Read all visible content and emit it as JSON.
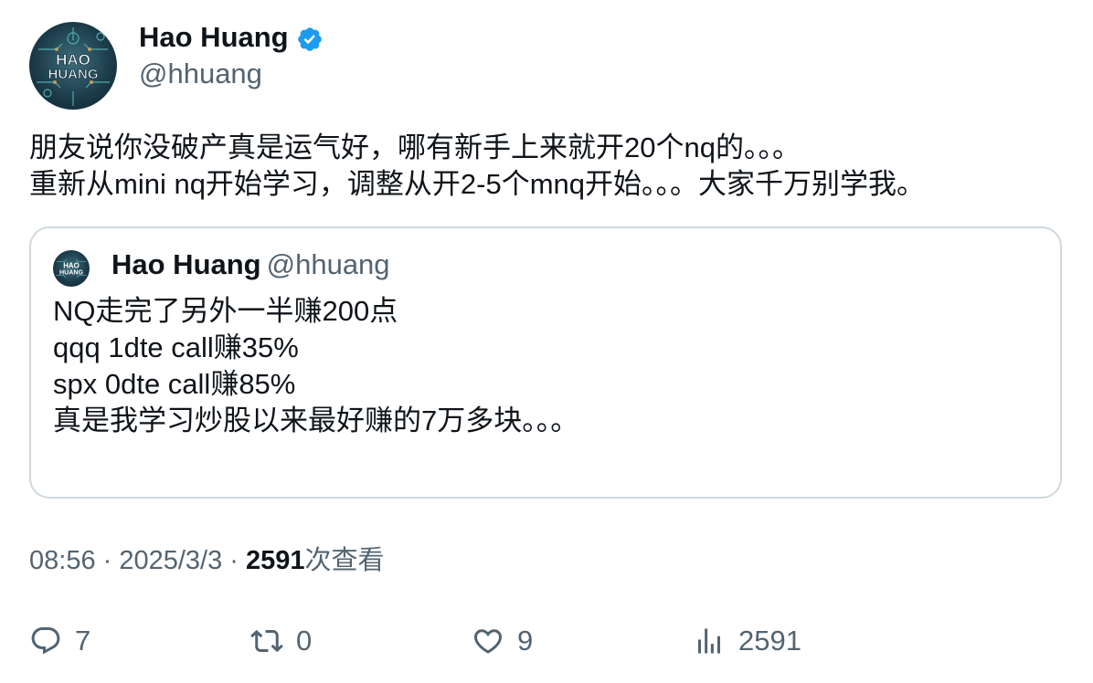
{
  "author": {
    "display_name": "Hao Huang",
    "handle": "@hhuang",
    "verified": true,
    "avatar_text": [
      "HAO",
      "HUANG"
    ],
    "verified_color": "#1d9bf0"
  },
  "tweet": {
    "text": "朋友说你没破产真是运气好，哪有新手上来就开20个nq的。。。\n重新从mini nq开始学习，调整从开2-5个mnq开始。。。大家千万别学我。"
  },
  "quote": {
    "display_name": "Hao Huang",
    "handle": "@hhuang",
    "text": "NQ走完了另外一半赚200点\nqqq 1dte call赚35%\nspx 0dte call赚85%\n真是我学习炒股以来最好赚的7万多块。。。"
  },
  "meta": {
    "time": "08:56",
    "separator": " · ",
    "date": "2025/3/3",
    "views": "2591",
    "views_label": "次查看"
  },
  "actions": {
    "reply": {
      "icon": "reply-icon",
      "count": "7"
    },
    "retweet": {
      "icon": "retweet-icon",
      "count": "0"
    },
    "like": {
      "icon": "heart-icon",
      "count": "9"
    },
    "views": {
      "icon": "views-icon",
      "count": "2591"
    }
  },
  "colors": {
    "text": "#0f1419",
    "secondary": "#536471",
    "border": "#cfd9de"
  }
}
